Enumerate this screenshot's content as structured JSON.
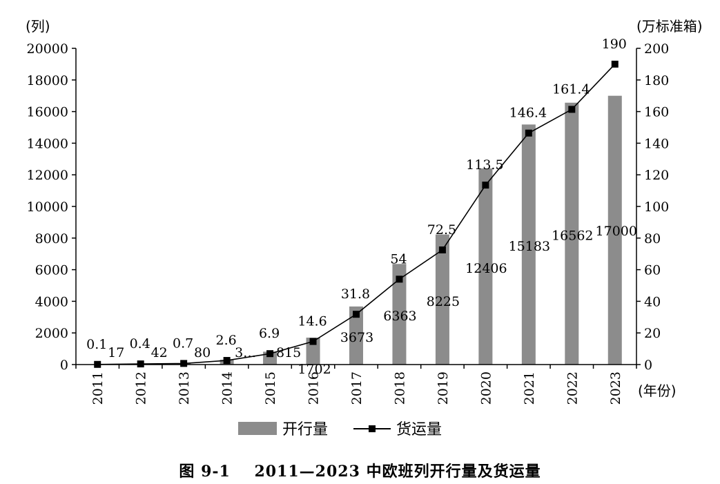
{
  "caption": {
    "figure_no": "图 9-1",
    "text": "2011—2023 中欧班列开行量及货运量"
  },
  "chart_data": {
    "type": "bar",
    "combo": "bar+line",
    "categories": [
      "2011",
      "2012",
      "2013",
      "2014",
      "2015",
      "2016",
      "2017",
      "2018",
      "2019",
      "2020",
      "2021",
      "2022",
      "2023"
    ],
    "left_unit": "(列)",
    "right_unit": "(万标准箱)",
    "x_unit": "(年份)",
    "left_axis": {
      "min": 0,
      "max": 20000,
      "step": 2000,
      "ticks": [
        "0",
        "2000",
        "4000",
        "6000",
        "8000",
        "10000",
        "12000",
        "14000",
        "16000",
        "18000",
        "20000"
      ]
    },
    "right_axis": {
      "min": 0,
      "max": 200,
      "step": 20,
      "ticks": [
        "0",
        "20",
        "40",
        "60",
        "80",
        "100",
        "120",
        "140",
        "160",
        "180",
        "200"
      ]
    },
    "series": [
      {
        "name": "开行量",
        "type": "bar",
        "axis": "left",
        "color": "#8c8c8c",
        "values": [
          17,
          42,
          80,
          308,
          815,
          1702,
          3673,
          6363,
          8225,
          12406,
          15183,
          16562,
          17000
        ],
        "labels": [
          "17",
          "42",
          "80",
          "3…",
          "815",
          "1702",
          "3673",
          "6363",
          "8225",
          "12406",
          "15183",
          "16562",
          "17000"
        ]
      },
      {
        "name": "货运量",
        "type": "line",
        "axis": "right",
        "color": "#000000",
        "marker": "square",
        "values": [
          0.1,
          0.4,
          0.7,
          2.6,
          6.9,
          14.6,
          31.8,
          54,
          72.5,
          113.5,
          146.4,
          161.4,
          190
        ],
        "labels": [
          "0.1",
          "0.4",
          "0.7",
          "2.6",
          "6.9",
          "14.6",
          "31.8",
          "54",
          "72.5",
          "113.5",
          "146.4",
          "161.4",
          "190"
        ]
      }
    ],
    "legend": {
      "position": "bottom",
      "items": [
        "开行量",
        "货运量"
      ]
    },
    "grid": false
  }
}
